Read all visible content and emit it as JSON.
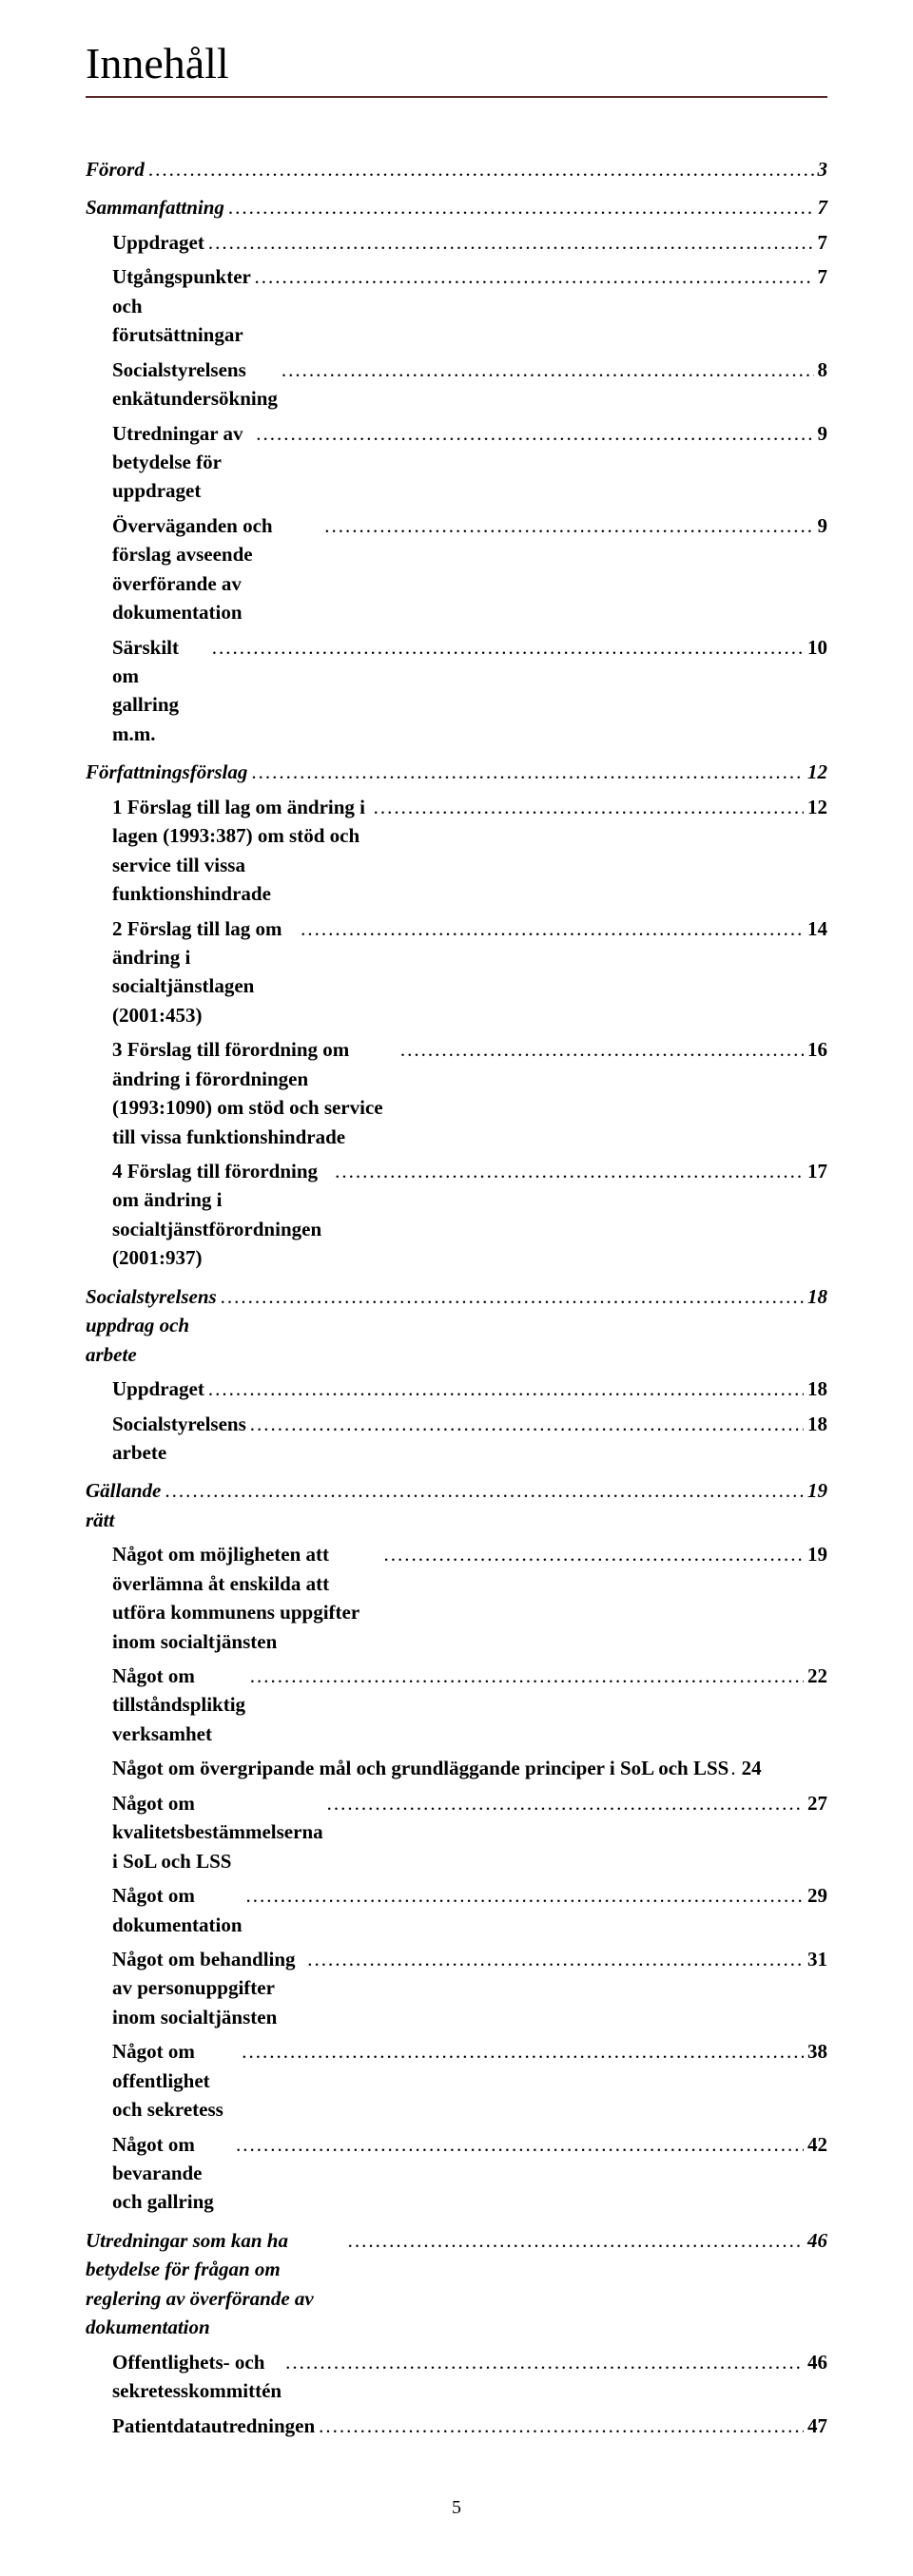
{
  "heading": "Innehåll",
  "rule_color": "#5a2a2a",
  "page_number": "5",
  "toc": [
    {
      "level": 1,
      "label": "Förord",
      "page": "3",
      "first": true
    },
    {
      "level": 1,
      "label": "Sammanfattning",
      "page": "7"
    },
    {
      "level": 2,
      "label": "Uppdraget",
      "page": "7"
    },
    {
      "level": 2,
      "label": "Utgångspunkter och förutsättningar",
      "page": "7"
    },
    {
      "level": 2,
      "label": "Socialstyrelsens enkätundersökning",
      "page": "8"
    },
    {
      "level": 2,
      "label": "Utredningar av betydelse för uppdraget",
      "page": "9"
    },
    {
      "level": 2,
      "label": "Överväganden och förslag avseende överförande av dokumentation",
      "page": "9"
    },
    {
      "level": 2,
      "label": "Särskilt om gallring m.m.",
      "page": "10"
    },
    {
      "level": 1,
      "label": "Författningsförslag",
      "page": "12"
    },
    {
      "level": 2,
      "label": "1 Förslag till lag om ändring i lagen (1993:387) om stöd och service till vissa funktionshindrade",
      "page": "12"
    },
    {
      "level": 2,
      "label": "2 Förslag till lag om ändring i socialtjänstlagen (2001:453)",
      "page": "14"
    },
    {
      "level": 2,
      "label": "3 Förslag till förordning om ändring i förordningen (1993:1090) om stöd och service till vissa funktionshindrade",
      "page": "16"
    },
    {
      "level": 2,
      "label": "4 Förslag till förordning om ändring i socialtjänstförordningen (2001:937)",
      "page": "17"
    },
    {
      "level": 1,
      "label": "Socialstyrelsens uppdrag och arbete",
      "page": "18"
    },
    {
      "level": 2,
      "label": "Uppdraget",
      "page": "18"
    },
    {
      "level": 2,
      "label": "Socialstyrelsens arbete",
      "page": "18"
    },
    {
      "level": 1,
      "label": "Gällande rätt",
      "page": "19"
    },
    {
      "level": 2,
      "label": "Något om möjligheten att överlämna åt enskilda att utföra kommunens uppgifter inom socialtjänsten",
      "page": "19"
    },
    {
      "level": 2,
      "label": "Något om tillståndspliktig verksamhet",
      "page": "22"
    },
    {
      "level": 2,
      "label": "Något om övergripande mål och grundläggande principer i SoL och LSS",
      "page": "24",
      "tight": true
    },
    {
      "level": 2,
      "label": "Något om kvalitetsbestämmelserna i SoL och LSS",
      "page": "27"
    },
    {
      "level": 2,
      "label": "Något om dokumentation",
      "page": "29"
    },
    {
      "level": 2,
      "label": "Något om behandling av personuppgifter inom socialtjänsten",
      "page": "31"
    },
    {
      "level": 2,
      "label": "Något om offentlighet och sekretess",
      "page": "38"
    },
    {
      "level": 2,
      "label": "Något om bevarande och gallring",
      "page": "42"
    },
    {
      "level": 1,
      "label": "Utredningar som kan ha betydelse för frågan om reglering av överförande av dokumentation",
      "page": "46"
    },
    {
      "level": 2,
      "label": "Offentlighets- och sekretesskommittén",
      "page": "46"
    },
    {
      "level": 2,
      "label": "Patientdatautredningen",
      "page": "47"
    }
  ]
}
